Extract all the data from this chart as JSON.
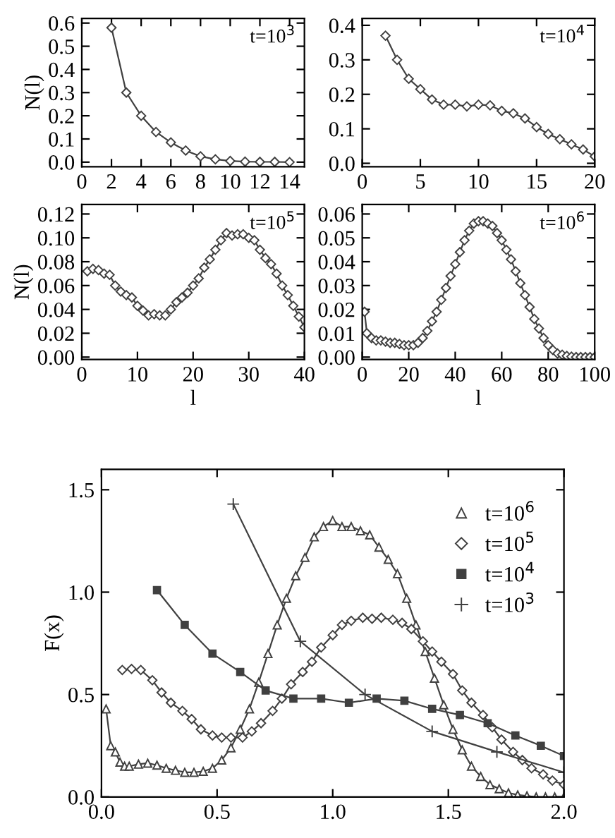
{
  "chart_data": [
    {
      "type": "line",
      "marker": "diamond",
      "line_style": "solid",
      "ylabel": "N(l)",
      "annotations": [
        "t=10$^{3}$"
      ],
      "xlim": [
        0,
        15
      ],
      "ylim": [
        -0.02,
        0.62
      ],
      "xticks": [
        0,
        2,
        4,
        6,
        8,
        10,
        12,
        14
      ],
      "yticks": [
        {
          "value": 0,
          "label": "0.0"
        },
        0.1,
        0.2,
        0.3,
        0.4,
        0.5,
        0.6
      ],
      "x": [
        2,
        3,
        4,
        5,
        6,
        7,
        8,
        9,
        10,
        11,
        12,
        13,
        14
      ],
      "series": [
        {
          "color": "#404040",
          "values": [
            0.58,
            0.3,
            0.2,
            0.13,
            0.085,
            0.05,
            0.025,
            0.012,
            0.005,
            0.002,
            0.001,
            0.001,
            0.0
          ]
        }
      ]
    },
    {
      "type": "line",
      "marker": "diamond",
      "line_style": "solid",
      "annotations": [
        "t=10$^{4}$"
      ],
      "xlim": [
        0,
        20
      ],
      "ylim": [
        -0.01,
        0.42
      ],
      "xticks": [
        0,
        5,
        10,
        15,
        20
      ],
      "yticks": [
        {
          "value": 0,
          "label": "0.0"
        },
        0.1,
        0.2,
        0.3,
        0.4
      ],
      "x": [
        2,
        3,
        4,
        5,
        6,
        7,
        8,
        9,
        10,
        11,
        12,
        13,
        14,
        15,
        16,
        17,
        18,
        19,
        20
      ],
      "series": [
        {
          "color": "#404040",
          "values": [
            0.37,
            0.3,
            0.245,
            0.215,
            0.185,
            0.17,
            0.17,
            0.165,
            0.17,
            0.168,
            0.152,
            0.145,
            0.13,
            0.105,
            0.085,
            0.07,
            0.055,
            0.04,
            0.02
          ]
        }
      ]
    },
    {
      "type": "line",
      "marker": "diamond",
      "line_style": "solid",
      "ylabel": "N(l)",
      "xlabel": "l",
      "annotations": [
        "t=10$^{5}$"
      ],
      "xlim": [
        0,
        40
      ],
      "ylim": [
        -0.002,
        0.128
      ],
      "xticks": [
        0,
        10,
        20,
        30,
        40
      ],
      "yticks": [
        {
          "value": 0,
          "label": "0.00"
        },
        {
          "value": 0.02,
          "label": "0.02"
        },
        {
          "value": 0.04,
          "label": "0.04"
        },
        {
          "value": 0.06,
          "label": "0.06"
        },
        {
          "value": 0.08,
          "label": "0.08"
        },
        {
          "value": 0.1,
          "label": "0.10"
        },
        {
          "value": 0.12,
          "label": "0.12"
        }
      ],
      "x": [
        1,
        2,
        3,
        4,
        5,
        6,
        7,
        8,
        9,
        10,
        11,
        12,
        13,
        14,
        15,
        16,
        17,
        18,
        19,
        20,
        21,
        22,
        23,
        24,
        25,
        26,
        27,
        28,
        29,
        30,
        31,
        32,
        33,
        34,
        35,
        36,
        37,
        38,
        39,
        40
      ],
      "series": [
        {
          "color": "#404040",
          "values": [
            0.072,
            0.074,
            0.073,
            0.07,
            0.069,
            0.06,
            0.055,
            0.052,
            0.05,
            0.043,
            0.039,
            0.035,
            0.036,
            0.035,
            0.035,
            0.04,
            0.046,
            0.05,
            0.054,
            0.06,
            0.066,
            0.075,
            0.082,
            0.09,
            0.098,
            0.104,
            0.102,
            0.103,
            0.103,
            0.1,
            0.098,
            0.09,
            0.083,
            0.078,
            0.07,
            0.06,
            0.052,
            0.043,
            0.034,
            0.025
          ]
        }
      ]
    },
    {
      "type": "line",
      "marker": "diamond",
      "line_style": "solid",
      "xlabel": "l",
      "annotations": [
        "t=10$^{6}$"
      ],
      "xlim": [
        0,
        100
      ],
      "ylim": [
        -0.001,
        0.064
      ],
      "xticks": [
        0,
        20,
        40,
        60,
        80,
        100
      ],
      "yticks": [
        {
          "value": 0,
          "label": "0.00"
        },
        {
          "value": 0.01,
          "label": "0.01"
        },
        {
          "value": 0.02,
          "label": "0.02"
        },
        {
          "value": 0.03,
          "label": "0.03"
        },
        {
          "value": 0.04,
          "label": "0.04"
        },
        {
          "value": 0.05,
          "label": "0.05"
        },
        {
          "value": 0.06,
          "label": "0.06"
        }
      ],
      "x": [
        1,
        2,
        4,
        6,
        8,
        10,
        12,
        14,
        16,
        18,
        20,
        22,
        24,
        26,
        28,
        30,
        32,
        34,
        36,
        38,
        40,
        42,
        44,
        46,
        48,
        50,
        52,
        54,
        56,
        58,
        60,
        62,
        64,
        66,
        68,
        70,
        72,
        74,
        76,
        78,
        80,
        82,
        84,
        86,
        88,
        90,
        92,
        94,
        96,
        98,
        100
      ],
      "series": [
        {
          "color": "#404040",
          "values": [
            0.019,
            0.01,
            0.008,
            0.007,
            0.007,
            0.0065,
            0.006,
            0.006,
            0.0055,
            0.005,
            0.005,
            0.005,
            0.006,
            0.008,
            0.011,
            0.015,
            0.019,
            0.024,
            0.029,
            0.034,
            0.039,
            0.044,
            0.049,
            0.053,
            0.056,
            0.057,
            0.057,
            0.056,
            0.055,
            0.052,
            0.049,
            0.045,
            0.041,
            0.036,
            0.031,
            0.026,
            0.021,
            0.016,
            0.012,
            0.008,
            0.005,
            0.003,
            0.0015,
            0.001,
            0.0005,
            0.0002,
            0.0,
            0.0,
            0.0,
            0.0,
            0.0
          ]
        }
      ]
    },
    {
      "type": "line",
      "line_style": "solid",
      "ylabel": "F(x)",
      "legend": "right",
      "xlim": [
        0,
        2
      ],
      "ylim": [
        0,
        1.6
      ],
      "xticks": [
        {
          "value": 0,
          "label": "0.0"
        },
        0.5,
        {
          "value": 1,
          "label": "1.0"
        },
        1.5,
        {
          "value": 2,
          "label": "2.0"
        }
      ],
      "yticks": [
        {
          "value": 0,
          "label": "0.0"
        },
        0.5,
        {
          "value": 1,
          "label": "1.0"
        },
        1.5
      ],
      "series": [
        {
          "name": "t=10$^{6}$",
          "color": "#404040",
          "marker": "triangle",
          "x": [
            0.02,
            0.04,
            0.06,
            0.08,
            0.1,
            0.12,
            0.16,
            0.2,
            0.24,
            0.28,
            0.32,
            0.36,
            0.4,
            0.44,
            0.48,
            0.52,
            0.56,
            0.6,
            0.64,
            0.68,
            0.72,
            0.76,
            0.8,
            0.84,
            0.88,
            0.92,
            0.96,
            1.0,
            1.04,
            1.08,
            1.12,
            1.16,
            1.2,
            1.24,
            1.28,
            1.32,
            1.36,
            1.4,
            1.44,
            1.48,
            1.52,
            1.56,
            1.6,
            1.64,
            1.68,
            1.72,
            1.76,
            1.8,
            1.84,
            1.88,
            1.92,
            1.96,
            2.0
          ],
          "values": [
            0.43,
            0.25,
            0.22,
            0.17,
            0.15,
            0.15,
            0.16,
            0.165,
            0.155,
            0.14,
            0.13,
            0.12,
            0.12,
            0.125,
            0.14,
            0.18,
            0.24,
            0.33,
            0.43,
            0.56,
            0.7,
            0.84,
            0.97,
            1.08,
            1.17,
            1.27,
            1.32,
            1.35,
            1.32,
            1.32,
            1.3,
            1.28,
            1.22,
            1.16,
            1.09,
            0.97,
            0.84,
            0.71,
            0.58,
            0.45,
            0.33,
            0.23,
            0.15,
            0.1,
            0.06,
            0.04,
            0.02,
            0.01,
            0.005,
            0.0,
            0.0,
            0.0,
            0.0
          ]
        },
        {
          "name": "t=10$^{5}$",
          "color": "#404040",
          "marker": "diamond",
          "x": [
            0.09,
            0.13,
            0.17,
            0.22,
            0.26,
            0.3,
            0.35,
            0.39,
            0.43,
            0.48,
            0.52,
            0.56,
            0.61,
            0.65,
            0.69,
            0.74,
            0.78,
            0.82,
            0.87,
            0.91,
            0.95,
            1.0,
            1.04,
            1.08,
            1.13,
            1.17,
            1.21,
            1.26,
            1.3,
            1.34,
            1.39,
            1.43,
            1.47,
            1.52,
            1.56,
            1.6,
            1.65,
            1.69,
            1.73,
            1.78,
            1.82,
            1.86,
            1.91,
            1.95,
            2.0
          ],
          "values": [
            0.62,
            0.625,
            0.62,
            0.57,
            0.51,
            0.46,
            0.42,
            0.38,
            0.33,
            0.3,
            0.29,
            0.29,
            0.29,
            0.32,
            0.36,
            0.42,
            0.48,
            0.55,
            0.61,
            0.66,
            0.73,
            0.79,
            0.84,
            0.86,
            0.875,
            0.87,
            0.875,
            0.865,
            0.85,
            0.82,
            0.76,
            0.71,
            0.66,
            0.6,
            0.52,
            0.46,
            0.4,
            0.34,
            0.28,
            0.22,
            0.18,
            0.14,
            0.11,
            0.08,
            0.06
          ]
        },
        {
          "name": "t=10$^{4}$",
          "color": "#404040",
          "marker": "square",
          "x": [
            0.24,
            0.36,
            0.48,
            0.6,
            0.71,
            0.83,
            0.95,
            1.07,
            1.19,
            1.31,
            1.43,
            1.55,
            1.67,
            1.79,
            1.9,
            2.0
          ],
          "values": [
            1.01,
            0.84,
            0.7,
            0.61,
            0.52,
            0.48,
            0.48,
            0.46,
            0.48,
            0.47,
            0.43,
            0.4,
            0.36,
            0.3,
            0.25,
            0.2
          ]
        },
        {
          "name": "t=10$^{3}$",
          "color": "#404040",
          "marker": "cross",
          "x": [
            0.57,
            0.86,
            1.14,
            1.43,
            1.71,
            2.0
          ],
          "values": [
            1.43,
            0.76,
            0.5,
            0.32,
            0.22,
            0.12
          ]
        }
      ]
    }
  ]
}
